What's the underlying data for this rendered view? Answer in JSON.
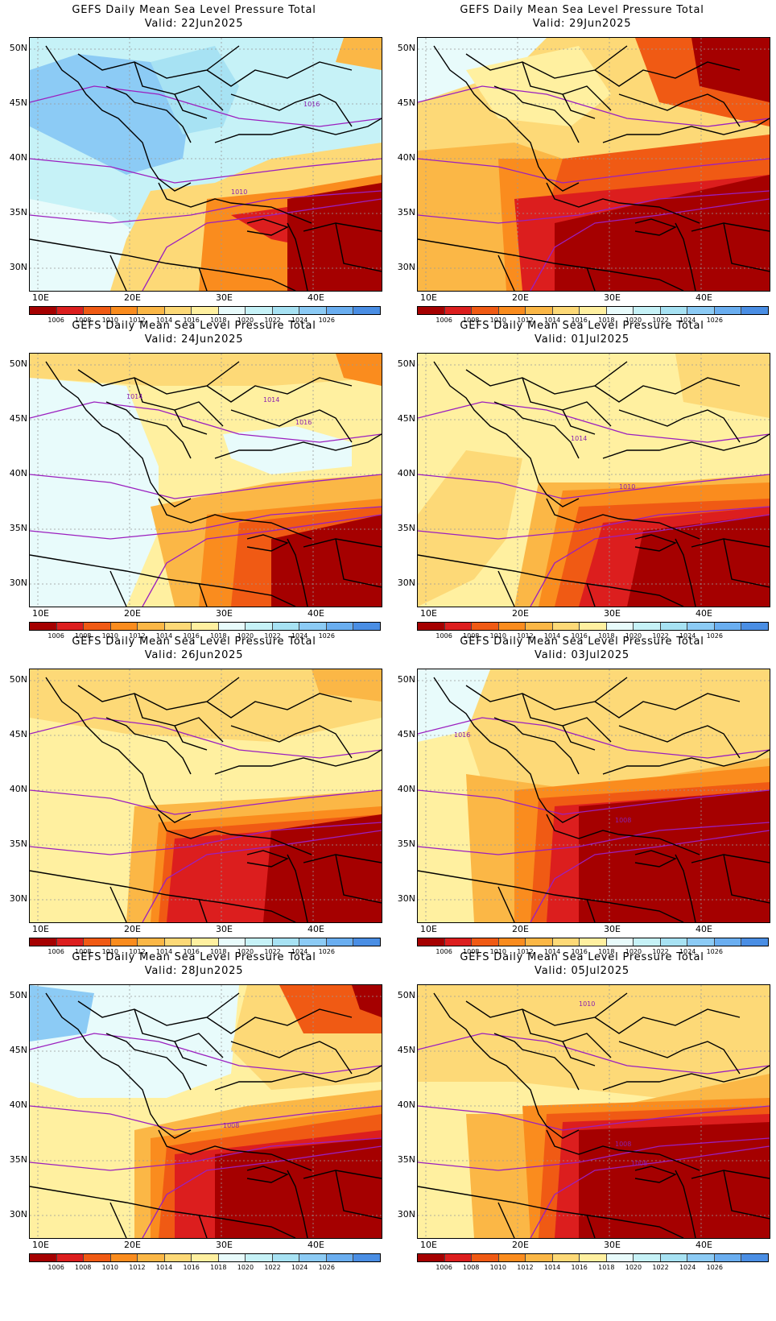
{
  "panels": [
    {
      "title": "GEFS Daily Mean Sea Level Pressure Total",
      "valid": "Valid: 22Jun2025",
      "scenario": "cool"
    },
    {
      "title": "GEFS Daily Mean Sea Level Pressure Total",
      "valid": "Valid: 29Jun2025",
      "scenario": "hot"
    },
    {
      "title": "GEFS Daily Mean Sea Level Pressure Total",
      "valid": "Valid: 24Jun2025",
      "scenario": "mild"
    },
    {
      "title": "GEFS Daily Mean Sea Level Pressure Total",
      "valid": "Valid: 01Jul2025",
      "scenario": "warm"
    },
    {
      "title": "GEFS Daily Mean Sea Level Pressure Total",
      "valid": "Valid: 26Jun2025",
      "scenario": "warm2"
    },
    {
      "title": "GEFS Daily Mean Sea Level Pressure Total",
      "valid": "Valid: 03Jul2025",
      "scenario": "warm3"
    },
    {
      "title": "GEFS Daily Mean Sea Level Pressure Total",
      "valid": "Valid: 28Jun2025",
      "scenario": "mixed"
    },
    {
      "title": "GEFS Daily Mean Sea Level Pressure Total",
      "valid": "Valid: 05Jul2025",
      "scenario": "warm4"
    }
  ],
  "axes": {
    "lat_labels": [
      "50N",
      "45N",
      "40N",
      "35N",
      "30N"
    ],
    "lon_labels": [
      "10E",
      "20E",
      "30E",
      "40E"
    ]
  },
  "colorbar": {
    "labels": [
      "1006",
      "1008",
      "1010",
      "1012",
      "1014",
      "1016",
      "1018",
      "1020",
      "1022",
      "1024",
      "1026"
    ],
    "colors": [
      "#a50000",
      "#dc1e1e",
      "#f05a14",
      "#fa8c1e",
      "#fbb746",
      "#fdd977",
      "#fff0a0",
      "#e8fbfb",
      "#c6f2f7",
      "#a7e2f3",
      "#8ccbf5",
      "#6aaef0",
      "#4a8ee4"
    ]
  },
  "contour_labels": {
    "p1": [
      "1016",
      "1010"
    ],
    "p3": [
      "1014",
      "1014",
      "1016"
    ],
    "p4": [
      "1014",
      "1010"
    ],
    "p6": [
      "1016",
      "1008"
    ],
    "p7": [
      "1008"
    ],
    "p8": [
      "1010",
      "1008",
      "1008"
    ]
  }
}
